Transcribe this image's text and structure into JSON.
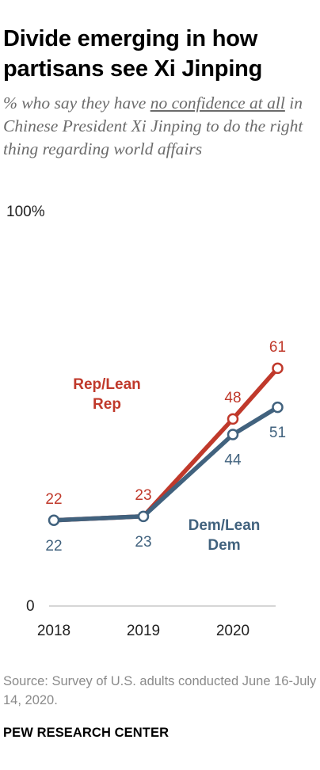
{
  "title": "Divide emerging in how partisans see Xi Jinping",
  "subtitle": {
    "before": "% who say they have ",
    "underlined": "no confidence at all",
    "after": " in Chinese President Xi Jinping to do the right thing regarding world affairs"
  },
  "source": "Source: Survey of U.S. adults conducted June 16-July 14, 2020.",
  "footer": "PEW RESEARCH CENTER",
  "colors": {
    "rep": "#c0392b",
    "dem": "#41627e"
  },
  "chart_data": {
    "type": "line",
    "x": [
      2018,
      2019,
      2020,
      2020.5
    ],
    "x_tick_labels": [
      "2018",
      "2019",
      "2020"
    ],
    "y_tick_labels": [
      "100%",
      "0"
    ],
    "ylim": [
      0,
      100
    ],
    "grid": false,
    "series": [
      {
        "name": "Rep/Lean Rep",
        "key": "rep",
        "values": [
          22,
          23,
          48,
          61
        ],
        "labels": [
          "22",
          "23",
          "48",
          "61"
        ]
      },
      {
        "name": "Dem/Lean Dem",
        "key": "dem",
        "values": [
          22,
          23,
          44,
          51
        ],
        "labels": [
          "22",
          "23",
          "44",
          "51"
        ]
      }
    ]
  }
}
